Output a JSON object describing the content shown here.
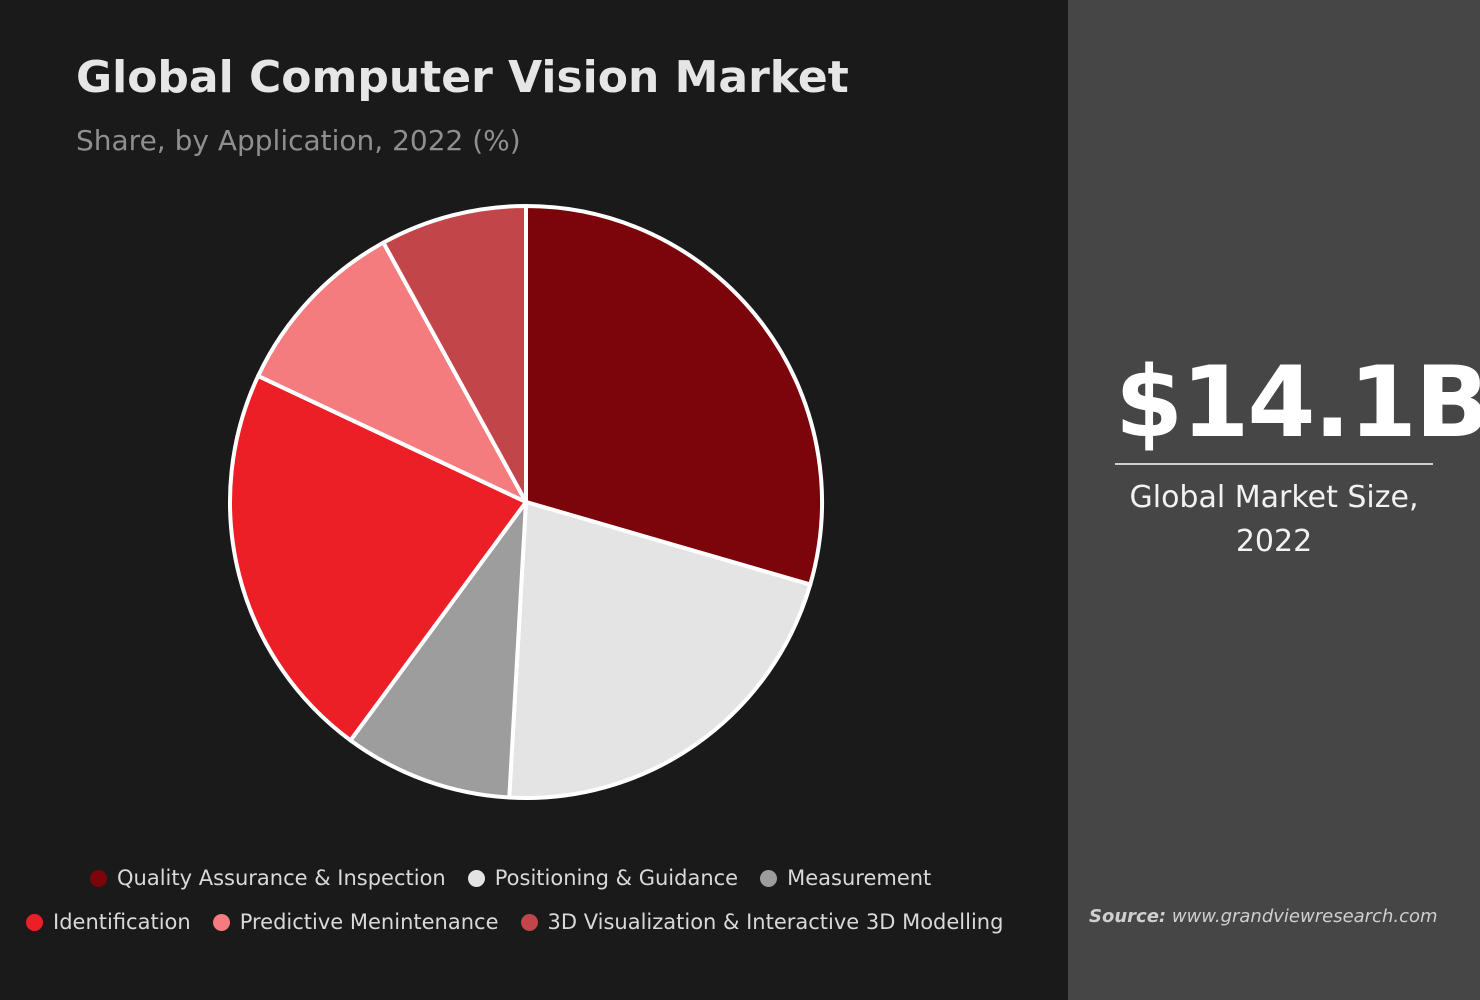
{
  "colors": {
    "background": "#1a1a1a",
    "panel": "#464646",
    "divider": "#ffffff"
  },
  "chart_data": {
    "type": "pie",
    "title": "Global Computer Vision Market",
    "subtitle": "Share, by Application, 2022 (%)",
    "categories": [
      "Quality Assurance & Inspection",
      "Positioning & Guidance",
      "Measurement",
      "Identification",
      "Predictive Menintenance",
      "3D Visualization & Interactive 3D Modelling"
    ],
    "values": [
      29.5,
      21.4,
      9.2,
      21.9,
      10.0,
      8.0
    ],
    "colors": [
      "#7c050b",
      "#e4e4e4",
      "#9d9d9d",
      "#ec1f27",
      "#f47b7e",
      "#c2454a"
    ],
    "legend_position": "bottom"
  },
  "summary": {
    "value": "$14.1B",
    "label": "Global Market Size, 2022"
  },
  "source": {
    "label": "Source:",
    "url": "www.grandviewresearch.com"
  }
}
